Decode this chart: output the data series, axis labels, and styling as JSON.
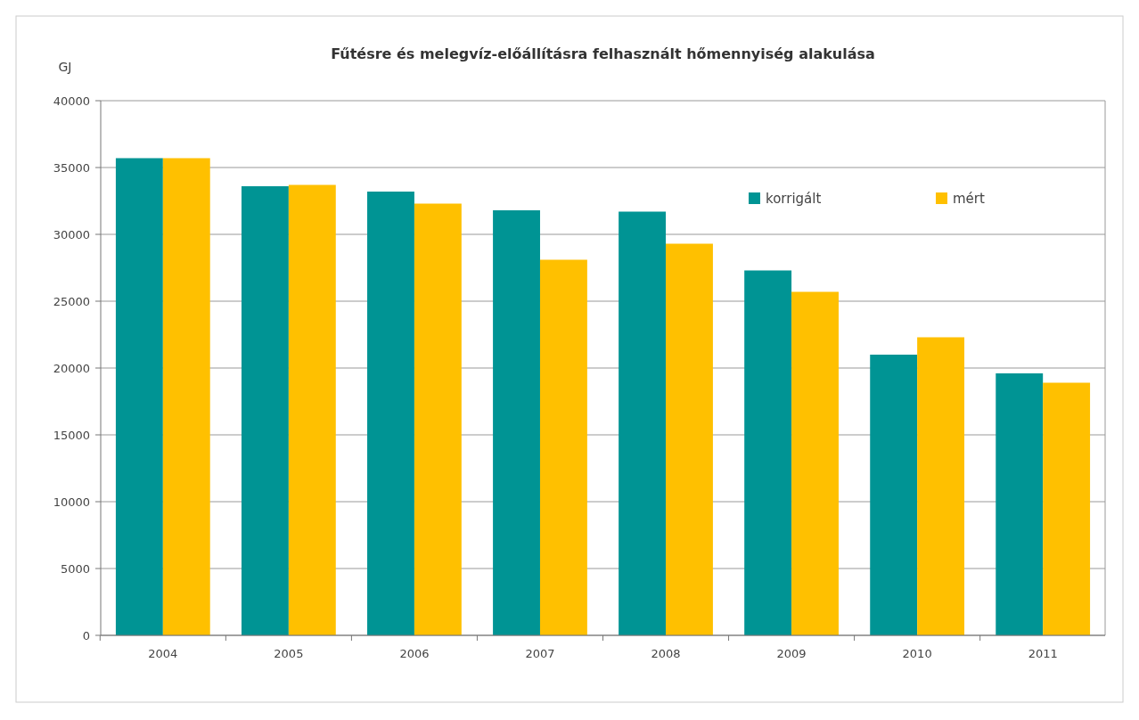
{
  "chart_data": {
    "type": "bar",
    "title": "Fűtésre és melegvíz-előállításra felhasznált hőmennyiség alakulása",
    "ylabel": "GJ",
    "categories": [
      "2004",
      "2005",
      "2006",
      "2007",
      "2008",
      "2009",
      "2010",
      "2011"
    ],
    "series": [
      {
        "name": "korrigált",
        "color": "#009494",
        "values": [
          35700,
          33600,
          33200,
          31800,
          31700,
          27300,
          21000,
          19600
        ]
      },
      {
        "name": "mért",
        "color": "#ffc000",
        "values": [
          35700,
          33700,
          32300,
          28100,
          29300,
          25700,
          22300,
          18900
        ]
      }
    ],
    "ylim": [
      0,
      40000
    ],
    "yticks": [
      0,
      5000,
      10000,
      15000,
      20000,
      25000,
      30000,
      35000,
      40000
    ],
    "grid": "y",
    "legend": "top right"
  }
}
